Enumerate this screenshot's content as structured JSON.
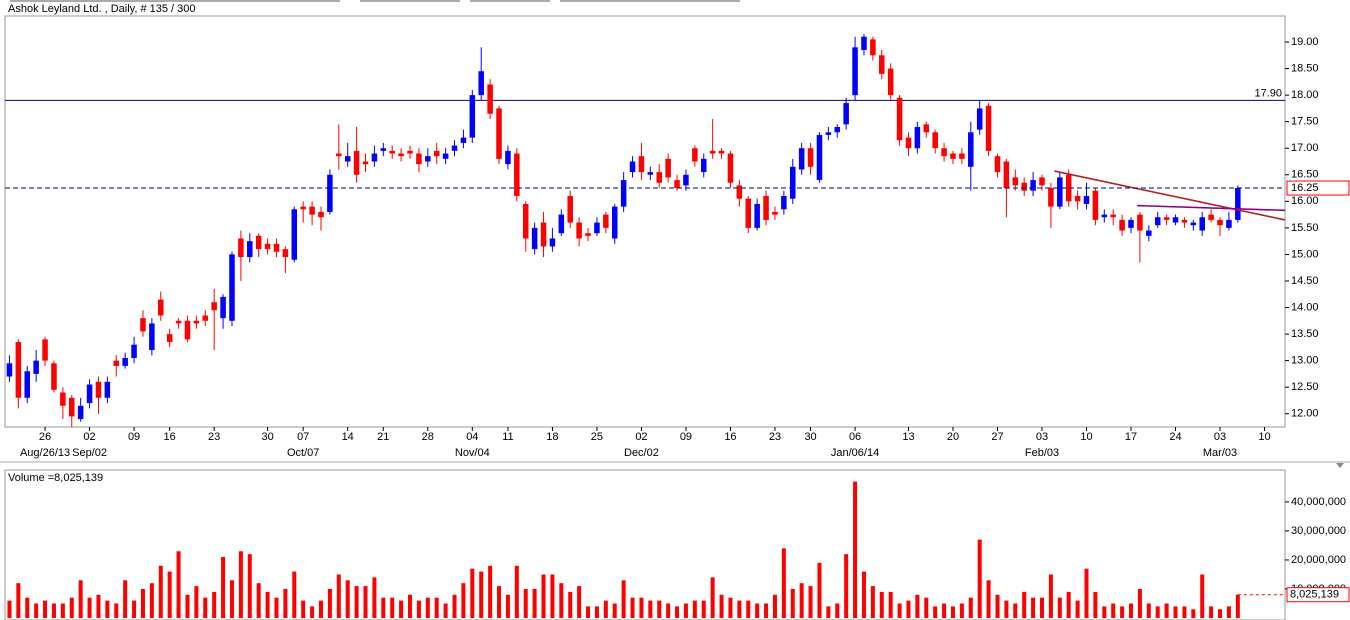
{
  "chart_data": {
    "type": "candlestick",
    "title": "Ashok Leyland Ltd. , Daily, # 135 / 300",
    "up_color": "#0000ff",
    "down_color": "#ff0000",
    "xlim": [
      -0.5,
      143.3
    ],
    "xticks": [
      {
        "value": 4,
        "label": "26"
      },
      {
        "value": 9,
        "label": "02"
      },
      {
        "value": 14,
        "label": "09"
      },
      {
        "value": 18,
        "label": "16"
      },
      {
        "value": 23,
        "label": "23"
      },
      {
        "value": 29,
        "label": "30"
      },
      {
        "value": 33,
        "label": "07"
      },
      {
        "value": 38,
        "label": "14"
      },
      {
        "value": 42,
        "label": "21"
      },
      {
        "value": 47,
        "label": "28"
      },
      {
        "value": 52,
        "label": "04"
      },
      {
        "value": 56,
        "label": "11"
      },
      {
        "value": 61,
        "label": "18"
      },
      {
        "value": 66,
        "label": "25"
      },
      {
        "value": 71,
        "label": "02"
      },
      {
        "value": 76,
        "label": "09"
      },
      {
        "value": 81,
        "label": "16"
      },
      {
        "value": 86,
        "label": "23"
      },
      {
        "value": 90,
        "label": "30"
      },
      {
        "value": 95,
        "label": "06"
      },
      {
        "value": 101,
        "label": "13"
      },
      {
        "value": 106,
        "label": "20"
      },
      {
        "value": 111,
        "label": "27"
      },
      {
        "value": 116,
        "label": "03"
      },
      {
        "value": 121,
        "label": "10"
      },
      {
        "value": 126,
        "label": "17"
      },
      {
        "value": 131,
        "label": "24"
      },
      {
        "value": 136,
        "label": "03"
      },
      {
        "value": 141,
        "label": "10"
      }
    ],
    "month_ticks": [
      {
        "value": 4,
        "label": "Aug/26/13"
      },
      {
        "value": 9,
        "label": "Sep/02"
      },
      {
        "value": 33,
        "label": "Oct/07"
      },
      {
        "value": 52,
        "label": "Nov/04"
      },
      {
        "value": 71,
        "label": "Dec/02"
      },
      {
        "value": 95,
        "label": "Jan/06/14"
      },
      {
        "value": 116,
        "label": "Feb/03"
      },
      {
        "value": 136,
        "label": "Mar/03"
      }
    ],
    "ylim": [
      11.75,
      19.49
    ],
    "yticks": [
      {
        "value": 12,
        "label": "12.00"
      },
      {
        "value": 12.5,
        "label": "12.50"
      },
      {
        "value": 13,
        "label": "13.00"
      },
      {
        "value": 13.5,
        "label": "13.50"
      },
      {
        "value": 14,
        "label": "14.00"
      },
      {
        "value": 14.5,
        "label": "14.50"
      },
      {
        "value": 15,
        "label": "15.00"
      },
      {
        "value": 15.5,
        "label": "15.50"
      },
      {
        "value": 16,
        "label": "16.00"
      },
      {
        "value": 16.5,
        "label": "16.50"
      },
      {
        "value": 17,
        "label": "17.00"
      },
      {
        "value": 17.5,
        "label": "17.50"
      },
      {
        "value": 18,
        "label": "18.00"
      },
      {
        "value": 18.5,
        "label": "18.50"
      },
      {
        "value": 19,
        "label": "19.00"
      }
    ],
    "open": [
      12.7,
      13.35,
      12.3,
      12.75,
      13.4,
      12.95,
      12.4,
      12.3,
      11.9,
      12.2,
      12.6,
      12.3,
      13.0,
      12.9,
      13.05,
      13.8,
      13.2,
      14.15,
      13.5,
      13.75,
      13.75,
      13.75,
      13.85,
      14.1,
      13.8,
      13.75,
      15.3,
      14.95,
      15.35,
      15.2,
      15.2,
      15.1,
      14.9,
      15.9,
      15.9,
      15.8,
      15.8,
      16.9,
      16.75,
      16.95,
      16.75,
      16.75,
      16.95,
      16.95,
      16.9,
      16.95,
      16.9,
      16.75,
      16.95,
      16.8,
      16.95,
      17.1,
      17.2,
      18.0,
      18.2,
      17.75,
      16.7,
      16.9,
      15.95,
      15.1,
      15.6,
      15.15,
      15.4,
      16.1,
      15.6,
      15.4,
      15.4,
      15.75,
      15.3,
      15.9,
      16.55,
      16.85,
      16.5,
      16.55,
      16.8,
      16.4,
      16.3,
      17.0,
      16.55,
      16.95,
      16.95,
      16.9,
      16.3,
      16.05,
      15.5,
      16.1,
      15.8,
      15.85,
      16.05,
      16.6,
      17.0,
      16.4,
      17.25,
      17.3,
      17.45,
      18.0,
      18.85,
      19.05,
      18.75,
      18.5,
      17.95,
      17.2,
      17.0,
      17.45,
      17.3,
      17.0,
      16.9,
      16.9,
      16.65,
      17.35,
      17.8,
      16.85,
      16.75,
      16.45,
      16.35,
      16.2,
      16.45,
      16.25,
      15.9,
      16.5,
      16.1,
      15.95,
      16.2,
      15.7,
      15.75,
      15.65,
      15.5,
      15.75,
      15.35,
      15.55,
      15.7,
      15.6,
      15.65,
      15.55,
      15.45,
      15.75,
      15.65,
      15.5,
      15.65
    ],
    "high": [
      13.1,
      13.4,
      12.9,
      13.2,
      13.45,
      13.0,
      12.5,
      12.35,
      12.3,
      12.65,
      12.7,
      12.7,
      13.1,
      13.15,
      13.45,
      13.95,
      13.8,
      14.3,
      13.6,
      13.8,
      13.85,
      13.85,
      13.95,
      14.35,
      14.25,
      15.05,
      15.45,
      15.4,
      15.4,
      15.3,
      15.3,
      15.15,
      15.9,
      16.0,
      16.0,
      15.9,
      16.6,
      17.45,
      17.1,
      17.4,
      16.9,
      17.05,
      17.1,
      17.05,
      17.0,
      17.05,
      17.0,
      17.0,
      17.1,
      17.0,
      17.15,
      17.35,
      18.1,
      18.9,
      18.3,
      17.8,
      17.05,
      17.0,
      16.0,
      15.6,
      15.8,
      15.5,
      15.85,
      16.2,
      15.7,
      15.5,
      15.7,
      15.8,
      15.95,
      16.55,
      16.85,
      17.1,
      16.65,
      16.7,
      16.9,
      16.5,
      16.6,
      17.05,
      16.9,
      17.55,
      17.0,
      16.95,
      16.4,
      16.1,
      16.05,
      16.2,
      15.9,
      16.2,
      16.8,
      17.1,
      17.1,
      17.3,
      17.4,
      17.45,
      17.95,
      19.1,
      19.15,
      19.1,
      18.85,
      18.6,
      18.0,
      17.3,
      17.5,
      17.5,
      17.35,
      17.1,
      16.95,
      17.0,
      17.5,
      17.9,
      17.85,
      16.9,
      16.8,
      16.6,
      16.45,
      16.55,
      16.5,
      16.35,
      16.55,
      16.6,
      16.2,
      16.35,
      16.25,
      15.85,
      15.85,
      15.75,
      15.7,
      15.8,
      15.55,
      15.8,
      15.75,
      15.75,
      15.7,
      15.65,
      15.8,
      15.85,
      15.7,
      15.8,
      16.3
    ],
    "low": [
      12.6,
      12.1,
      12.2,
      12.6,
      12.9,
      12.4,
      11.9,
      11.75,
      11.85,
      12.1,
      12.0,
      12.2,
      12.7,
      12.85,
      12.95,
      13.45,
      13.1,
      13.75,
      13.25,
      13.6,
      13.35,
      13.6,
      13.65,
      13.2,
      13.6,
      13.65,
      14.5,
      14.85,
      14.95,
      15.0,
      14.95,
      14.65,
      14.85,
      15.6,
      15.55,
      15.45,
      15.75,
      16.6,
      16.65,
      16.35,
      16.55,
      16.65,
      16.85,
      16.8,
      16.75,
      16.8,
      16.55,
      16.65,
      16.7,
      16.7,
      16.85,
      17.0,
      17.1,
      17.9,
      17.55,
      16.7,
      16.6,
      16.0,
      15.05,
      15.0,
      14.95,
      15.05,
      15.35,
      15.5,
      15.15,
      15.25,
      15.35,
      15.4,
      15.2,
      15.8,
      16.45,
      16.4,
      16.4,
      16.25,
      16.35,
      16.2,
      16.2,
      16.65,
      16.45,
      16.8,
      16.8,
      16.25,
      15.9,
      15.4,
      15.45,
      15.55,
      15.65,
      15.75,
      15.95,
      16.5,
      16.5,
      16.35,
      17.15,
      17.2,
      17.35,
      17.9,
      18.75,
      18.65,
      18.3,
      17.9,
      17.05,
      16.85,
      16.9,
      17.2,
      16.9,
      16.75,
      16.7,
      16.7,
      16.2,
      17.25,
      16.85,
      16.45,
      15.7,
      16.2,
      16.1,
      16.1,
      16.2,
      15.5,
      15.85,
      15.9,
      15.85,
      15.85,
      15.55,
      15.6,
      15.55,
      15.35,
      15.4,
      14.85,
      15.25,
      15.5,
      15.55,
      15.55,
      15.5,
      15.45,
      15.35,
      15.6,
      15.35,
      15.45,
      15.6
    ],
    "close": [
      12.95,
      12.3,
      12.8,
      13.0,
      13.0,
      12.45,
      12.15,
      11.95,
      12.15,
      12.55,
      12.3,
      12.6,
      12.9,
      13.05,
      13.3,
      13.55,
      13.7,
      13.85,
      13.35,
      13.7,
      13.4,
      13.7,
      13.75,
      13.95,
      14.2,
      15.0,
      14.95,
      15.25,
      15.1,
      15.1,
      15.05,
      14.95,
      15.85,
      15.85,
      15.75,
      15.7,
      16.5,
      16.85,
      16.85,
      16.5,
      16.7,
      16.9,
      17.0,
      16.9,
      16.85,
      16.9,
      16.7,
      16.85,
      16.85,
      16.9,
      17.05,
      17.2,
      18.0,
      18.45,
      17.65,
      16.8,
      16.95,
      16.1,
      15.3,
      15.5,
      15.15,
      15.3,
      15.75,
      15.6,
      15.3,
      15.35,
      15.6,
      15.5,
      15.9,
      16.4,
      16.75,
      16.55,
      16.55,
      16.35,
      16.45,
      16.25,
      16.5,
      16.75,
      16.8,
      16.9,
      16.9,
      16.35,
      16.05,
      15.5,
      15.95,
      15.65,
      15.75,
      16.1,
      16.65,
      17.0,
      16.65,
      17.25,
      17.3,
      17.4,
      17.85,
      18.9,
      19.1,
      18.75,
      18.4,
      18.0,
      17.15,
      17.0,
      17.4,
      17.3,
      17.0,
      16.85,
      16.8,
      16.8,
      17.3,
      17.75,
      16.95,
      16.55,
      16.25,
      16.3,
      16.2,
      16.4,
      16.3,
      15.9,
      16.45,
      16.0,
      16.0,
      16.1,
      15.65,
      15.75,
      15.7,
      15.45,
      15.65,
      15.45,
      15.45,
      15.7,
      15.65,
      15.7,
      15.6,
      15.6,
      15.7,
      15.65,
      15.55,
      15.65,
      16.25
    ],
    "hlines": [
      {
        "value": 17.9,
        "label": "17.90",
        "color": "#00008b"
      }
    ],
    "last_price_line": true,
    "trendlines": [
      {
        "color": "#b22222",
        "points": [
          [
            117.4,
            16.57
          ],
          [
            143.3,
            15.65
          ]
        ]
      },
      {
        "color": "#8b008b",
        "points": [
          [
            126.7,
            15.92
          ],
          [
            143.3,
            15.83
          ]
        ]
      }
    ],
    "volume": {
      "title": "Volume =",
      "color": "#ff0000",
      "ylim": [
        0,
        51000000
      ],
      "yticks": [
        {
          "value": 10000000,
          "label": "10,000,000"
        },
        {
          "value": 20000000,
          "label": "20,000,000"
        },
        {
          "value": 30000000,
          "label": "30,000,000"
        },
        {
          "value": 40000000,
          "label": "40,000,000"
        }
      ],
      "values": [
        6000000.0,
        12000000.0,
        7000000.0,
        5000000.0,
        6000000.0,
        5000000.0,
        5000000.0,
        7000000.0,
        13000000.0,
        7000000.0,
        8000000.0,
        6000000.0,
        5000000.0,
        13000000.0,
        6000000.0,
        10000000.0,
        12000000.0,
        18000000.0,
        16000000.0,
        23000000.0,
        8000000.0,
        11000000.0,
        7000000.0,
        9000000.0,
        21000000.0,
        13000000.0,
        23000000.0,
        22000000.0,
        12000000.0,
        9000000.0,
        7000000.0,
        10000000.0,
        16000000.0,
        6000000.0,
        4000000.0,
        6000000.0,
        10000000.0,
        15000000.0,
        13000000.0,
        11000000.0,
        11000000.0,
        14000000.0,
        7000000.0,
        7000000.0,
        6000000.0,
        8000000.0,
        6000000.0,
        7000000.0,
        7000000.0,
        5000000.0,
        8000000.0,
        12000000.0,
        17000000.0,
        16000000.0,
        18000000.0,
        11000000.0,
        8000000.0,
        18000000.0,
        10000000.0,
        10000000.0,
        15000000.0,
        15000000.0,
        12000000.0,
        9000000.0,
        11000000.0,
        4000000.0,
        4000000.0,
        6000000.0,
        5000000.0,
        13000000.0,
        7000000.0,
        7000000.0,
        6000000.0,
        6000000.0,
        5000000.0,
        4000000.0,
        5000000.0,
        6000000.0,
        6000000.0,
        14000000.0,
        8000000.0,
        7000000.0,
        6000000.0,
        6000000.0,
        5000000.0,
        5000000.0,
        8000000.0,
        24000000.0,
        10000000.0,
        12000000.0,
        11000000.0,
        19000000.0,
        4000000.0,
        5000000.0,
        22000000.0,
        47000000.0,
        16000000.0,
        11000000.0,
        9000000.0,
        9000000.0,
        5000000.0,
        6000000.0,
        8000000.0,
        7000000.0,
        4000000.0,
        5000000.0,
        4000000.0,
        5000000.0,
        7000000.0,
        27000000.0,
        13000000.0,
        8000000.0,
        6000000.0,
        5000000.0,
        9000000.0,
        7000000.0,
        7000000.0,
        15000000.0,
        7000000.0,
        9000000.0,
        6000000.0,
        17000000.0,
        9000000.0,
        4000000.0,
        5000000.0,
        4000000.0,
        5000000.0,
        10000000.0,
        5000000.0,
        4000000.0,
        5000000.0,
        4000000.0,
        4000000.0,
        3000000.0,
        15000000.0,
        4000000.0,
        3000000.0,
        4000000.0,
        8025139
      ],
      "last_label": "8,025,139"
    }
  }
}
